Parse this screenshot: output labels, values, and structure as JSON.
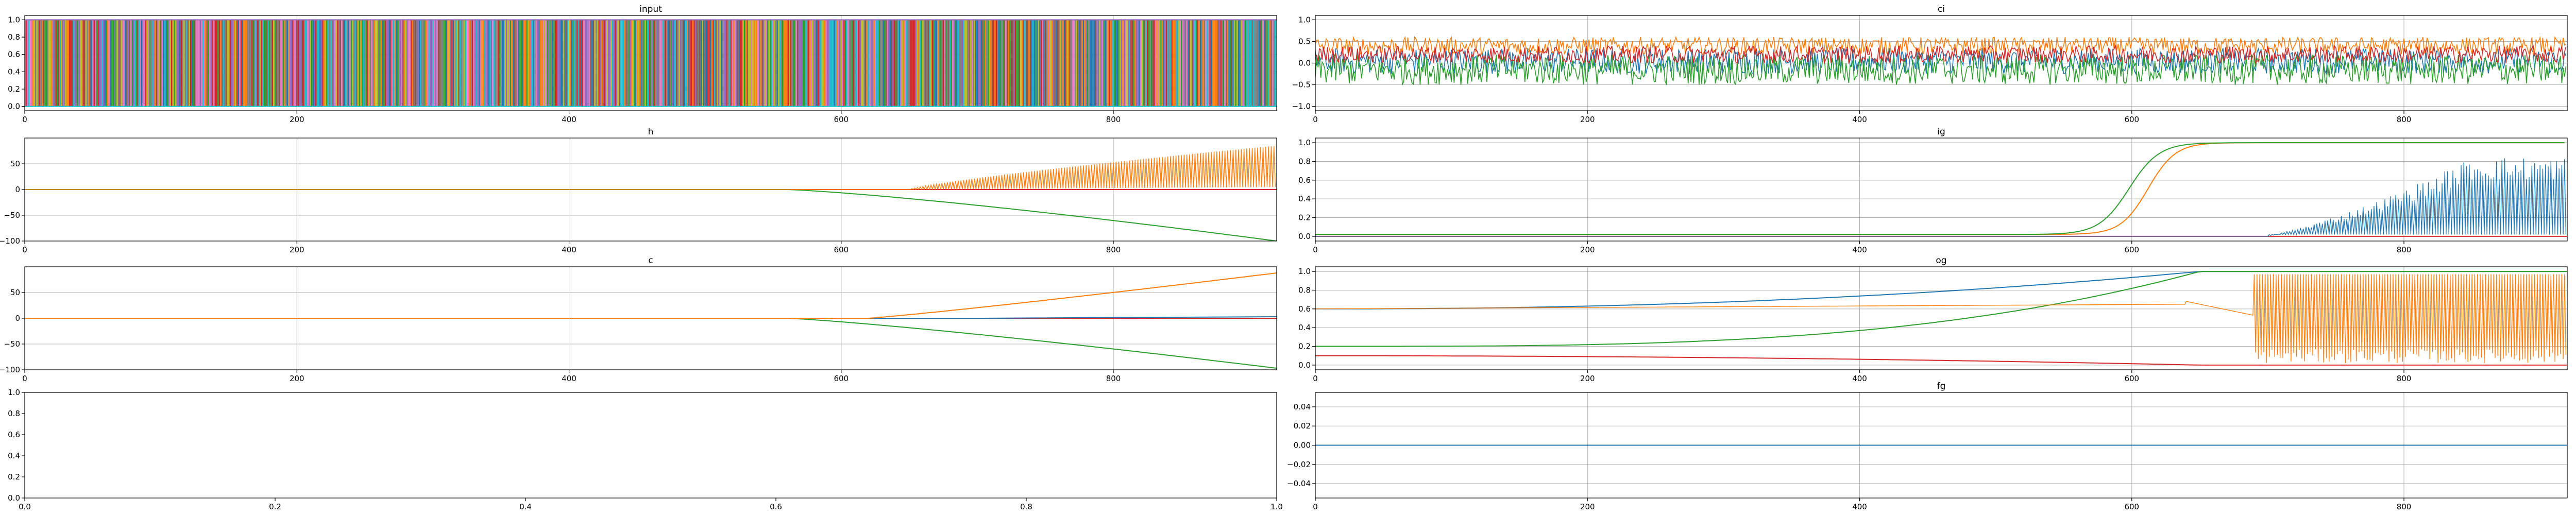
{
  "colors": {
    "blue": "#1f77b4",
    "orange": "#ff7f0e",
    "green": "#2ca02c",
    "red": "#d62728",
    "grid": "#b0b0b0"
  },
  "chart_data": [
    {
      "id": "input",
      "type": "line",
      "title": "input",
      "grid": true,
      "xlim": [
        0,
        920
      ],
      "ylim": [
        -0.05,
        1.05
      ],
      "xticks": [
        0,
        200,
        400,
        600,
        800
      ],
      "yticks": [
        0.0,
        0.2,
        0.4,
        0.6,
        0.8,
        1.0
      ],
      "ytick_labels": [
        "0.0",
        "0.2",
        "0.4",
        "0.6",
        "0.8",
        "1.0"
      ],
      "description_series": "many one-hot channels switching between 0 and 1 at every step",
      "series": [
        {
          "values_range": [
            0,
            1
          ],
          "pattern": "binary"
        }
      ]
    },
    {
      "id": "ci",
      "type": "line",
      "title": "ci",
      "grid": true,
      "xlim": [
        0,
        920
      ],
      "ylim": [
        -1.1,
        1.1
      ],
      "xticks": [
        0,
        200,
        400,
        600,
        800
      ],
      "yticks": [
        -1.0,
        -0.5,
        0.0,
        0.5,
        1.0
      ],
      "ytick_labels": [
        "−1.0",
        "−0.5",
        "0.0",
        "0.5",
        "1.0"
      ],
      "series": [
        {
          "color": "blue",
          "mean": 0.05,
          "amp": 0.3
        },
        {
          "color": "orange",
          "mean": 0.4,
          "amp": 0.2
        },
        {
          "color": "green",
          "mean": -0.15,
          "amp": 0.35
        },
        {
          "color": "red",
          "mean": 0.2,
          "amp": 0.2
        }
      ]
    },
    {
      "id": "h",
      "type": "line",
      "title": "h",
      "grid": true,
      "xlim": [
        0,
        920
      ],
      "ylim": [
        -100,
        100
      ],
      "xticks": [
        0,
        200,
        400,
        600,
        800
      ],
      "yticks": [
        -100,
        -50,
        0,
        50
      ],
      "ytick_labels": [
        "−100",
        "−50",
        "0",
        "50"
      ],
      "series": [
        {
          "color": "orange",
          "pattern": "growing oscillation",
          "start_x": 650,
          "end_upper": 85,
          "end_lower": 5
        },
        {
          "color": "green",
          "pattern": "decline",
          "start_x": 560,
          "end_value": -100
        },
        {
          "color": "blue",
          "value": 0
        },
        {
          "color": "red",
          "value": 0
        }
      ]
    },
    {
      "id": "ig",
      "type": "line",
      "title": "ig",
      "grid": true,
      "xlim": [
        0,
        920
      ],
      "ylim": [
        -0.05,
        1.05
      ],
      "xticks": [
        0,
        200,
        400,
        600,
        800
      ],
      "yticks": [
        0.0,
        0.2,
        0.4,
        0.6,
        0.8,
        1.0
      ],
      "ytick_labels": [
        "0.0",
        "0.2",
        "0.4",
        "0.6",
        "0.8",
        "1.0"
      ],
      "series": [
        {
          "color": "blue",
          "pattern": "oscillation growing",
          "start_x": 700,
          "max": 0.85
        },
        {
          "color": "orange",
          "pattern": "sigmoid",
          "x0": 610,
          "y_start": 0.02,
          "y_end": 1.0
        },
        {
          "color": "green",
          "pattern": "sigmoid",
          "x0": 600,
          "y_start": 0.02,
          "y_end": 1.0
        },
        {
          "color": "red",
          "value": 0
        }
      ]
    },
    {
      "id": "c",
      "type": "line",
      "title": "c",
      "grid": true,
      "xlim": [
        0,
        920
      ],
      "ylim": [
        -100,
        100
      ],
      "xticks": [
        0,
        200,
        400,
        600,
        800
      ],
      "yticks": [
        -100,
        -50,
        0,
        50
      ],
      "ytick_labels": [
        "−100",
        "−50",
        "0",
        "50"
      ],
      "series": [
        {
          "color": "orange",
          "pattern": "rise",
          "start_x": 620,
          "end_value": 88
        },
        {
          "color": "green",
          "pattern": "decline",
          "start_x": 560,
          "end_value": -97
        },
        {
          "color": "blue",
          "value": 3
        },
        {
          "color": "red",
          "value": 0
        }
      ]
    },
    {
      "id": "og",
      "type": "line",
      "title": "og",
      "grid": true,
      "xlim": [
        0,
        920
      ],
      "ylim": [
        -0.05,
        1.05
      ],
      "xticks": [
        0,
        200,
        400,
        600,
        800
      ],
      "yticks": [
        0.0,
        0.2,
        0.4,
        0.6,
        0.8,
        1.0
      ],
      "ytick_labels": [
        "0.0",
        "0.2",
        "0.4",
        "0.6",
        "0.8",
        "1.0"
      ],
      "series": [
        {
          "color": "blue",
          "y_start": 0.6,
          "y_end": 1.0
        },
        {
          "color": "orange",
          "y_start": 0.6,
          "pattern": "oscillation after 690"
        },
        {
          "color": "green",
          "y_start": 0.2,
          "y_end": 1.0
        },
        {
          "color": "red",
          "y_start": 0.1,
          "y_end": 0.0
        }
      ]
    },
    {
      "id": "empty",
      "type": "line",
      "title": "",
      "grid": false,
      "xlim": [
        0.0,
        1.0
      ],
      "ylim": [
        0.0,
        1.0
      ],
      "xticks": [
        0.0,
        0.2,
        0.4,
        0.6,
        0.8,
        1.0
      ],
      "xtick_labels": [
        "0.0",
        "0.2",
        "0.4",
        "0.6",
        "0.8",
        "1.0"
      ],
      "yticks": [
        0.0,
        0.2,
        0.4,
        0.6,
        0.8,
        1.0
      ],
      "ytick_labels": [
        "0.0",
        "0.2",
        "0.4",
        "0.6",
        "0.8",
        "1.0"
      ],
      "series": []
    },
    {
      "id": "fg",
      "type": "line",
      "title": "fg",
      "grid": true,
      "xlim": [
        0,
        920
      ],
      "ylim": [
        -0.055,
        0.055
      ],
      "xticks": [
        0,
        200,
        400,
        600,
        800
      ],
      "yticks": [
        -0.04,
        -0.02,
        0.0,
        0.02,
        0.04
      ],
      "ytick_labels": [
        "−0.04",
        "−0.02",
        "0.00",
        "0.02",
        "0.04"
      ],
      "series": [
        {
          "color": "blue",
          "value": 0
        }
      ]
    }
  ]
}
